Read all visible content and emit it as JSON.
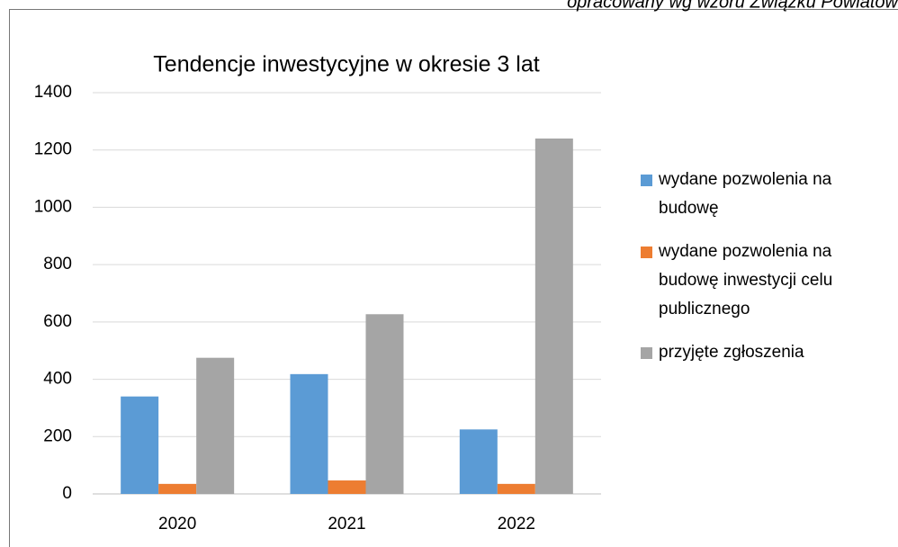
{
  "caption": "opracowany wg wzoru Związku Powiatów",
  "chart_data": {
    "type": "bar",
    "title": "Tendencje inwestycyjne w okresie 3 lat",
    "categories": [
      "2020",
      "2021",
      "2022"
    ],
    "series": [
      {
        "name": "wydane pozwolenia na budowę",
        "color": "#5b9bd5",
        "values": [
          340,
          418,
          225
        ]
      },
      {
        "name": "wydane pozwolenia na budowę inwestycji celu publicznego",
        "color": "#ed7d31",
        "values": [
          35,
          47,
          35
        ]
      },
      {
        "name": "przyjęte zgłoszenia",
        "color": "#a5a5a5",
        "values": [
          475,
          627,
          1240
        ]
      }
    ],
    "ylim": [
      0,
      1400
    ],
    "yticks": [
      0,
      200,
      400,
      600,
      800,
      1000,
      1200,
      1400
    ],
    "grid": true,
    "legend": "right"
  }
}
